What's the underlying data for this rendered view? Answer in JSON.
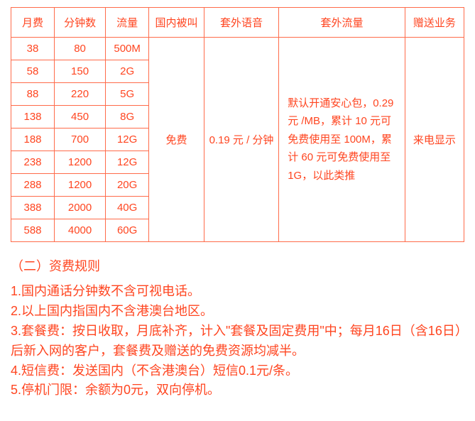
{
  "table": {
    "headers": {
      "fee": "月费",
      "minutes": "分钟数",
      "data": "流量",
      "incoming": "国内被叫",
      "voice": "套外语音",
      "traffic": "套外流量",
      "service": "赠送业务"
    },
    "rows": [
      {
        "fee": "38",
        "minutes": "80",
        "data": "500M"
      },
      {
        "fee": "58",
        "minutes": "150",
        "data": "2G"
      },
      {
        "fee": "88",
        "minutes": "220",
        "data": "5G"
      },
      {
        "fee": "138",
        "minutes": "450",
        "data": "8G"
      },
      {
        "fee": "188",
        "minutes": "700",
        "data": "12G"
      },
      {
        "fee": "238",
        "minutes": "1200",
        "data": "12G"
      },
      {
        "fee": "288",
        "minutes": "1200",
        "data": "20G"
      },
      {
        "fee": "388",
        "minutes": "2000",
        "data": "40G"
      },
      {
        "fee": "588",
        "minutes": "4000",
        "data": "60G"
      }
    ],
    "merged": {
      "incoming": "免费",
      "voice": "0.19 元 / 分钟",
      "traffic": "默认开通安心包，0.29 元 /MB，累计 10 元可免费使用至 100M，累计 60 元可免费使用至 1G，以此类推",
      "service": "来电显示"
    }
  },
  "rules": {
    "title": "（二）资费规则",
    "items": [
      "1.国内通话分钟数不含可视电话。",
      "2.以上国内指国内不含港澳台地区。",
      "3.套餐费：按日收取，月底补齐，计入\"套餐及固定费用\"中；每月16日（含16日）后新入网的客户，套餐费及赠送的免费资源均减半。",
      "4.短信费：发送国内（不含港澳台）短信0.1元/条。",
      "5.停机门限：余额为0元，双向停机。"
    ]
  },
  "colors": {
    "text": "#ff4520",
    "border": "#ff6b4a",
    "background": "#ffffff"
  }
}
